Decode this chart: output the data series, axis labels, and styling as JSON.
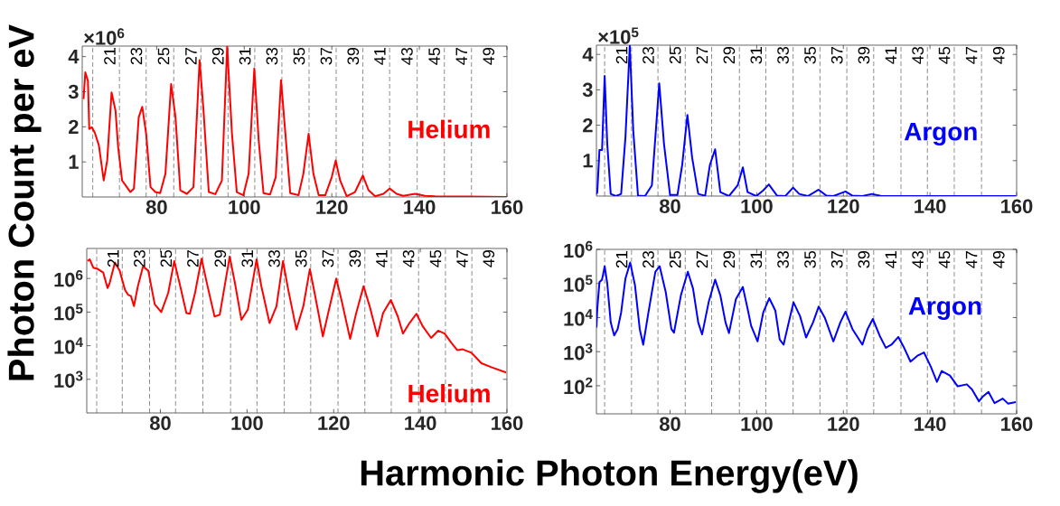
{
  "chart_data": [
    {
      "type": "line",
      "ylabel": "Photon Count per eV",
      "xlim": [
        63,
        160
      ],
      "xticks": [
        80,
        100,
        120,
        140,
        160
      ],
      "ylim": [
        0,
        4.3
      ],
      "yticks": [
        1,
        2,
        3,
        4
      ],
      "series": [
        {
          "name": "Helium",
          "color": "#ff0000",
          "x": [
            63.3,
            63.7,
            64.3,
            64.6,
            65.2,
            65.9,
            66.8,
            67.7,
            67.9,
            68.7,
            69.7,
            70.6,
            71.2,
            72.1,
            73.2,
            74.0,
            74.8,
            75.9,
            76.7,
            77.6,
            78.6,
            79.7,
            80.8,
            82.0,
            83.3,
            84.3,
            85.4,
            86.9,
            88.4,
            89.8,
            90.7,
            91.9,
            93.4,
            94.9,
            96.1,
            97.2,
            98.3,
            99.8,
            101.0,
            102.3,
            103.3,
            104.4,
            105.9,
            107.2,
            108.4,
            109.4,
            110.5,
            112.4,
            113.5,
            114.7,
            115.8,
            117.0,
            118.5,
            120.0,
            120.9,
            121.9,
            123.4,
            125.3,
            127.1,
            128.4,
            129.9,
            131.8,
            133.2,
            134.8,
            136.3,
            139.0,
            141.3,
            143.6,
            151.2,
            159.9
          ],
          "values": [
            2.79,
            3.55,
            3.31,
            1.94,
            1.99,
            1.82,
            1.47,
            0.66,
            0.47,
            1.04,
            2.98,
            2.46,
            1.42,
            0.47,
            0.28,
            0.14,
            0.24,
            2.27,
            2.57,
            1.8,
            0.28,
            0.14,
            0.11,
            0.66,
            3.22,
            2.27,
            0.19,
            0.09,
            0.28,
            3.9,
            2.46,
            0.14,
            0.08,
            0.47,
            4.3,
            1.8,
            0.14,
            0.05,
            0.66,
            3.66,
            1.61,
            0.11,
            0.07,
            0.57,
            3.33,
            1.8,
            0.11,
            0.05,
            0.66,
            1.8,
            0.66,
            0.05,
            0.05,
            0.57,
            1.04,
            0.47,
            0.02,
            0.14,
            0.61,
            0.19,
            0.02,
            0.09,
            0.24,
            0.09,
            0.03,
            0.09,
            0.03,
            0.02,
            0.01,
            0.0
          ]
        }
      ],
      "annotations": [
        "×10$^{6}$",
        "21",
        "23",
        "25",
        "27",
        "29",
        "31",
        "33",
        "35",
        "37",
        "39",
        "41",
        "43",
        "45",
        "47",
        "49"
      ],
      "ref_lines": [
        {
          "axis": "x",
          "value": 65.4,
          "color": "#404040",
          "line_style": "dashed"
        },
        {
          "axis": "x",
          "value": 71.5,
          "color": "#404040",
          "line_style": "dashed"
        },
        {
          "axis": "x",
          "value": 77.6,
          "color": "#404040",
          "line_style": "dashed"
        },
        {
          "axis": "x",
          "value": 83.9,
          "color": "#404040",
          "line_style": "dashed"
        },
        {
          "axis": "x",
          "value": 90.1,
          "color": "#404040",
          "line_style": "dashed"
        },
        {
          "axis": "x",
          "value": 96.3,
          "color": "#404040",
          "line_style": "dashed"
        },
        {
          "axis": "x",
          "value": 102.4,
          "color": "#404040",
          "line_style": "dashed"
        },
        {
          "axis": "x",
          "value": 108.6,
          "color": "#404040",
          "line_style": "dashed"
        },
        {
          "axis": "x",
          "value": 114.8,
          "color": "#404040",
          "line_style": "dashed"
        },
        {
          "axis": "x",
          "value": 121.0,
          "color": "#404040",
          "line_style": "dashed"
        },
        {
          "axis": "x",
          "value": 127.1,
          "color": "#404040",
          "line_style": "dashed"
        },
        {
          "axis": "x",
          "value": 133.2,
          "color": "#404040",
          "line_style": "dashed"
        },
        {
          "axis": "x",
          "value": 139.5,
          "color": "#404040",
          "line_style": "dashed"
        },
        {
          "axis": "x",
          "value": 145.7,
          "color": "#404040",
          "line_style": "dashed"
        },
        {
          "axis": "x",
          "value": 151.9,
          "color": "#404040",
          "line_style": "dashed"
        }
      ]
    },
    {
      "type": "line",
      "xlim": [
        63,
        160
      ],
      "xticks": [
        80,
        100,
        120,
        140,
        160
      ],
      "ylim": [
        0,
        4.26
      ],
      "yticks": [
        1,
        2,
        3,
        4
      ],
      "series": [
        {
          "name": "Argon",
          "color": "#0000ff",
          "x": [
            63.0,
            63.2,
            63.7,
            64.3,
            64.9,
            65.5,
            66.3,
            67.5,
            68.7,
            69.7,
            70.7,
            71.5,
            72.6,
            74.2,
            75.8,
            77.5,
            78.6,
            80.0,
            81.7,
            82.8,
            84.0,
            85.1,
            86.5,
            88.1,
            89.2,
            90.4,
            91.6,
            93.6,
            95.6,
            96.8,
            97.9,
            99.9,
            101.5,
            102.8,
            104.7,
            106.6,
            108.4,
            109.8,
            111.8,
            114.3,
            116.1,
            117.7,
            120.5,
            122.1,
            124.4,
            126.6,
            128.8,
            133.1,
            141.0,
            159.8
          ],
          "values": [
            0.05,
            0.11,
            1.3,
            1.3,
            3.39,
            1.47,
            0.06,
            0.0,
            0.06,
            1.66,
            4.25,
            1.85,
            0.01,
            0.0,
            0.3,
            3.18,
            1.47,
            0.03,
            0.03,
            0.88,
            2.29,
            1.08,
            0.06,
            0.01,
            0.88,
            1.32,
            0.11,
            0.0,
            0.3,
            0.81,
            0.11,
            0.0,
            0.16,
            0.33,
            0.01,
            0.0,
            0.24,
            0.06,
            0.0,
            0.18,
            0.01,
            0.0,
            0.13,
            0.01,
            0.0,
            0.06,
            0.0,
            0.0,
            0.0,
            0.0
          ]
        }
      ],
      "annotations": [
        "×10$^{5}$",
        "21",
        "23",
        "25",
        "27",
        "29",
        "31",
        "33",
        "35",
        "37",
        "39",
        "41",
        "43",
        "45",
        "47",
        "49"
      ],
      "ref_lines": [
        {
          "axis": "x",
          "value": 64.9,
          "color": "#404040",
          "line_style": "dashed"
        },
        {
          "axis": "x",
          "value": 71.1,
          "color": "#404040",
          "line_style": "dashed"
        },
        {
          "axis": "x",
          "value": 77.2,
          "color": "#404040",
          "line_style": "dashed"
        },
        {
          "axis": "x",
          "value": 83.5,
          "color": "#404040",
          "line_style": "dashed"
        },
        {
          "axis": "x",
          "value": 89.6,
          "color": "#404040",
          "line_style": "dashed"
        },
        {
          "axis": "x",
          "value": 96.0,
          "color": "#404040",
          "line_style": "dashed"
        },
        {
          "axis": "x",
          "value": 102.1,
          "color": "#404040",
          "line_style": "dashed"
        },
        {
          "axis": "x",
          "value": 108.4,
          "color": "#404040",
          "line_style": "dashed"
        },
        {
          "axis": "x",
          "value": 114.6,
          "color": "#404040",
          "line_style": "dashed"
        },
        {
          "axis": "x",
          "value": 120.8,
          "color": "#404040",
          "line_style": "dashed"
        },
        {
          "axis": "x",
          "value": 127.0,
          "color": "#404040",
          "line_style": "dashed"
        },
        {
          "axis": "x",
          "value": 133.3,
          "color": "#404040",
          "line_style": "dashed"
        },
        {
          "axis": "x",
          "value": 139.4,
          "color": "#404040",
          "line_style": "dashed"
        },
        {
          "axis": "x",
          "value": 145.6,
          "color": "#404040",
          "line_style": "dashed"
        },
        {
          "axis": "x",
          "value": 151.9,
          "color": "#404040",
          "line_style": "dashed"
        }
      ]
    },
    {
      "type": "line",
      "log": "y",
      "xlabel": "Harmonic Photon Energy(eV)",
      "xlim": [
        63,
        160
      ],
      "xticks": [
        80,
        100,
        120,
        140,
        160
      ],
      "ylim": [
        100,
        7800000
      ],
      "yticks": [
        {
          "value": 1000,
          "label": "10$^{3}$"
        },
        {
          "value": 10000,
          "label": "10$^{4}$"
        },
        {
          "value": 100000,
          "label": "10$^{5}$"
        },
        {
          "value": 1000000,
          "label": "10$^{6}$"
        }
      ],
      "series": [
        {
          "name": "Helium",
          "color": "#ff0000",
          "x": [
            63.2,
            63.7,
            64.5,
            65.6,
            66.8,
            67.8,
            68.3,
            69.5,
            70.6,
            71.8,
            72.5,
            73.2,
            73.9,
            74.8,
            76.0,
            77.2,
            78.7,
            80.2,
            81.8,
            83.2,
            84.5,
            86.0,
            86.8,
            88.0,
            89.5,
            90.8,
            92.5,
            93.7,
            96.0,
            97.2,
            98.7,
            100.2,
            102.2,
            103.3,
            105.2,
            106.8,
            108.3,
            109.5,
            111.4,
            113.0,
            114.5,
            115.6,
            117.5,
            119.1,
            120.6,
            121.8,
            123.8,
            125.2,
            126.9,
            128.3,
            130.1,
            131.4,
            133.2,
            134.8,
            136.0,
            137.5,
            139.1,
            140.6,
            142.5,
            144.1,
            145.6,
            147.2,
            148.5,
            149.8,
            151.8,
            154.1,
            156.4,
            159.8
          ],
          "values": [
            3300000,
            3700000,
            2100000,
            1900000,
            1500000,
            520000,
            740000,
            3000000,
            1700000,
            470000,
            330000,
            300000,
            150000,
            590000,
            2300000,
            1700000,
            170000,
            100000,
            370000,
            3300000,
            660000,
            93000,
            89000,
            370000,
            3900000,
            660000,
            74000,
            83000,
            4500000,
            740000,
            59000,
            120000,
            3700000,
            590000,
            47000,
            150000,
            3300000,
            470000,
            30000,
            150000,
            1900000,
            370000,
            19000,
            150000,
            1000000,
            230000,
            16000,
            93000,
            590000,
            150000,
            19000,
            93000,
            230000,
            74000,
            23000,
            47000,
            89000,
            37000,
            17000,
            28000,
            23000,
            12000,
            7400,
            7800,
            6200,
            3000,
            2300,
            1600
          ]
        }
      ],
      "annotations": [
        "21",
        "23",
        "25",
        "27",
        "29",
        "31",
        "33",
        "35",
        "37",
        "39",
        "41",
        "43",
        "45",
        "47",
        "49"
      ],
      "ref_lines": [
        {
          "axis": "x",
          "value": 65.3,
          "color": "#404040",
          "line_style": "dashed"
        },
        {
          "axis": "x",
          "value": 71.2,
          "color": "#404040",
          "line_style": "dashed"
        },
        {
          "axis": "x",
          "value": 77.5,
          "color": "#404040",
          "line_style": "dashed"
        },
        {
          "axis": "x",
          "value": 83.5,
          "color": "#404040",
          "line_style": "dashed"
        },
        {
          "axis": "x",
          "value": 89.8,
          "color": "#404040",
          "line_style": "dashed"
        },
        {
          "axis": "x",
          "value": 96.2,
          "color": "#404040",
          "line_style": "dashed"
        },
        {
          "axis": "x",
          "value": 102.3,
          "color": "#404040",
          "line_style": "dashed"
        },
        {
          "axis": "x",
          "value": 108.6,
          "color": "#404040",
          "line_style": "dashed"
        },
        {
          "axis": "x",
          "value": 114.7,
          "color": "#404040",
          "line_style": "dashed"
        },
        {
          "axis": "x",
          "value": 121.0,
          "color": "#404040",
          "line_style": "dashed"
        },
        {
          "axis": "x",
          "value": 127.2,
          "color": "#404040",
          "line_style": "dashed"
        },
        {
          "axis": "x",
          "value": 133.3,
          "color": "#404040",
          "line_style": "dashed"
        },
        {
          "axis": "x",
          "value": 139.6,
          "color": "#404040",
          "line_style": "dashed"
        },
        {
          "axis": "x",
          "value": 145.8,
          "color": "#404040",
          "line_style": "dashed"
        },
        {
          "axis": "x",
          "value": 151.9,
          "color": "#404040",
          "line_style": "dashed"
        }
      ]
    },
    {
      "type": "line",
      "log": "y",
      "xlim": [
        63,
        160
      ],
      "xticks": [
        80,
        100,
        120,
        140,
        160
      ],
      "ylim": [
        15,
        1000000
      ],
      "yticks": [
        {
          "value": 100,
          "label": "10$^{2}$"
        },
        {
          "value": 1000,
          "label": "10$^{3}$"
        },
        {
          "value": 10000,
          "label": "10$^{4}$"
        },
        {
          "value": 100000,
          "label": "10$^{5}$"
        },
        {
          "value": 1000000,
          "label": "10$^{6}$"
        }
      ],
      "series": [
        {
          "name": "Argon",
          "color": "#0000ff",
          "x": [
            63.0,
            63.2,
            63.7,
            64.3,
            64.9,
            65.5,
            66.3,
            67.1,
            67.9,
            68.7,
            69.7,
            70.8,
            71.9,
            73.0,
            73.8,
            75.0,
            76.6,
            77.6,
            79.0,
            80.3,
            80.9,
            82.5,
            84.1,
            85.3,
            86.5,
            87.4,
            88.9,
            90.4,
            91.6,
            92.8,
            93.6,
            95.2,
            96.8,
            97.9,
            98.7,
            100.2,
            101.5,
            102.9,
            104.3,
            105.3,
            106.2,
            107.4,
            108.5,
            110.0,
            111.4,
            113.0,
            114.3,
            115.7,
            117.7,
            119.3,
            120.5,
            122.1,
            124.4,
            125.6,
            126.8,
            128.4,
            129.8,
            131.1,
            132.7,
            133.9,
            135.5,
            137.1,
            138.6,
            140.2,
            141.6,
            142.7,
            144.6,
            146.4,
            148.5,
            149.7,
            151.3,
            152.1,
            153.5,
            154.9,
            156.8,
            158.0,
            159.8
          ],
          "values": [
            5100,
            18000,
            110000,
            130000,
            320000,
            100000,
            7200,
            3000,
            4600,
            14000,
            140000,
            410000,
            89000,
            4600,
            1600,
            14000,
            220000,
            320000,
            56000,
            4600,
            3600,
            45000,
            220000,
            71000,
            7200,
            3200,
            28000,
            130000,
            45000,
            7200,
            3500,
            35000,
            79000,
            18000,
            5800,
            2000,
            14000,
            37000,
            16000,
            2300,
            1600,
            7200,
            28000,
            11000,
            2600,
            7200,
            21000,
            10000,
            2000,
            7200,
            15000,
            4600,
            1600,
            4600,
            9100,
            2900,
            1300,
            1600,
            2700,
            1400,
            510,
            760,
            950,
            360,
            130,
            270,
            200,
            96,
            110,
            78,
            35,
            47,
            66,
            31,
            42,
            30,
            33
          ]
        }
      ],
      "annotations": [
        "21",
        "23",
        "25",
        "27",
        "29",
        "31",
        "33",
        "35",
        "37",
        "39",
        "41",
        "43",
        "45",
        "47",
        "49"
      ],
      "ref_lines": [
        {
          "axis": "x",
          "value": 64.9,
          "color": "#404040",
          "line_style": "dashed"
        },
        {
          "axis": "x",
          "value": 71.1,
          "color": "#404040",
          "line_style": "dashed"
        },
        {
          "axis": "x",
          "value": 77.2,
          "color": "#404040",
          "line_style": "dashed"
        },
        {
          "axis": "x",
          "value": 83.5,
          "color": "#404040",
          "line_style": "dashed"
        },
        {
          "axis": "x",
          "value": 89.6,
          "color": "#404040",
          "line_style": "dashed"
        },
        {
          "axis": "x",
          "value": 96.0,
          "color": "#404040",
          "line_style": "dashed"
        },
        {
          "axis": "x",
          "value": 102.1,
          "color": "#404040",
          "line_style": "dashed"
        },
        {
          "axis": "x",
          "value": 108.4,
          "color": "#404040",
          "line_style": "dashed"
        },
        {
          "axis": "x",
          "value": 114.6,
          "color": "#404040",
          "line_style": "dashed"
        },
        {
          "axis": "x",
          "value": 120.8,
          "color": "#404040",
          "line_style": "dashed"
        },
        {
          "axis": "x",
          "value": 127.0,
          "color": "#404040",
          "line_style": "dashed"
        },
        {
          "axis": "x",
          "value": 133.3,
          "color": "#404040",
          "line_style": "dashed"
        },
        {
          "axis": "x",
          "value": 139.4,
          "color": "#404040",
          "line_style": "dashed"
        },
        {
          "axis": "x",
          "value": 145.6,
          "color": "#404040",
          "line_style": "dashed"
        },
        {
          "axis": "x",
          "value": 151.9,
          "color": "#404040",
          "line_style": "dashed"
        }
      ]
    }
  ]
}
